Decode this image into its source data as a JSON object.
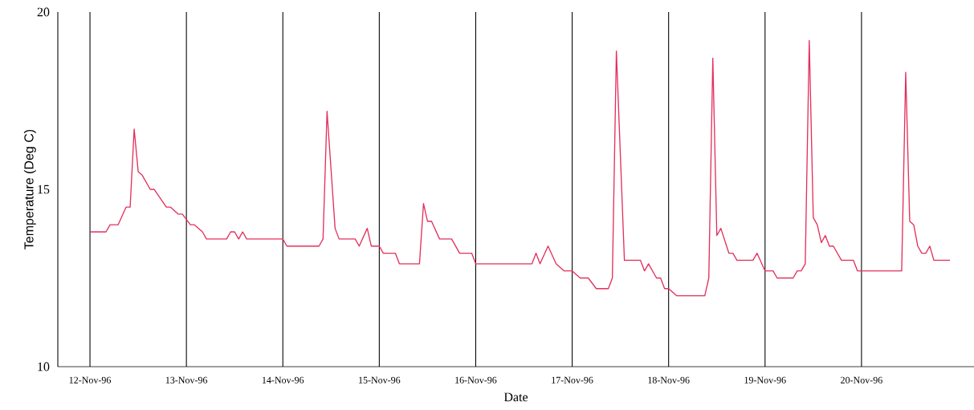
{
  "chart_data": {
    "type": "line",
    "xlabel": "Date",
    "ylabel": "Temperature (Deg C)",
    "color": "#e3305c",
    "marker": "none",
    "line_style": "solid",
    "grid": "x",
    "xlim": [
      "1996-11-11T16:00",
      "1996-11-21T04:00"
    ],
    "ylim": [
      10,
      20
    ],
    "yticks": [
      10,
      15,
      20
    ],
    "xticks": [
      {
        "value": "1996-11-12",
        "label": "12-Nov-96"
      },
      {
        "value": "1996-11-13",
        "label": "13-Nov-96"
      },
      {
        "value": "1996-11-14",
        "label": "14-Nov-96"
      },
      {
        "value": "1996-11-15",
        "label": "15-Nov-96"
      },
      {
        "value": "1996-11-16",
        "label": "16-Nov-96"
      },
      {
        "value": "1996-11-17",
        "label": "17-Nov-96"
      },
      {
        "value": "1996-11-18",
        "label": "18-Nov-96"
      },
      {
        "value": "1996-11-19",
        "label": "19-Nov-96"
      },
      {
        "value": "1996-11-20",
        "label": "20-Nov-96"
      }
    ],
    "x": [
      "1996-11-12T00:00",
      "1996-11-12T04:00",
      "1996-11-12T05:00",
      "1996-11-12T07:00",
      "1996-11-12T09:00",
      "1996-11-12T10:00",
      "1996-11-12T11:00",
      "1996-11-12T12:00",
      "1996-11-12T13:00",
      "1996-11-12T15:00",
      "1996-11-12T16:00",
      "1996-11-12T19:00",
      "1996-11-12T20:00",
      "1996-11-12T22:00",
      "1996-11-12T23:00",
      "1996-11-13T01:00",
      "1996-11-13T02:00",
      "1996-11-13T04:00",
      "1996-11-13T05:00",
      "1996-11-13T10:00",
      "1996-11-13T11:00",
      "1996-11-13T12:00",
      "1996-11-13T13:00",
      "1996-11-13T14:00",
      "1996-11-13T15:00",
      "1996-11-14T00:00",
      "1996-11-14T01:00",
      "1996-11-14T09:00",
      "1996-11-14T10:00",
      "1996-11-14T11:00",
      "1996-11-14T13:00",
      "1996-11-14T14:00",
      "1996-11-14T18:00",
      "1996-11-14T19:00",
      "1996-11-14T21:00",
      "1996-11-14T22:00",
      "1996-11-15T00:00",
      "1996-11-15T01:00",
      "1996-11-15T04:00",
      "1996-11-15T05:00",
      "1996-11-15T10:00",
      "1996-11-15T11:00",
      "1996-11-15T12:00",
      "1996-11-15T13:00",
      "1996-11-15T15:00",
      "1996-11-15T18:00",
      "1996-11-15T20:00",
      "1996-11-15T23:00",
      "1996-11-16T00:00",
      "1996-11-16T14:00",
      "1996-11-16T15:00",
      "1996-11-16T16:00",
      "1996-11-16T18:00",
      "1996-11-16T20:00",
      "1996-11-16T22:00",
      "1996-11-17T00:00",
      "1996-11-17T02:00",
      "1996-11-17T04:00",
      "1996-11-17T06:00",
      "1996-11-17T09:00",
      "1996-11-17T10:00",
      "1996-11-17T11:00",
      "1996-11-17T13:00",
      "1996-11-17T17:00",
      "1996-11-17T18:00",
      "1996-11-17T19:00",
      "1996-11-17T21:00",
      "1996-11-17T22:00",
      "1996-11-17T23:00",
      "1996-11-18T00:00",
      "1996-11-18T02:00",
      "1996-11-18T09:00",
      "1996-11-18T10:00",
      "1996-11-18T11:00",
      "1996-11-18T12:00",
      "1996-11-18T13:00",
      "1996-11-18T15:00",
      "1996-11-18T16:00",
      "1996-11-18T17:00",
      "1996-11-18T21:00",
      "1996-11-18T22:00",
      "1996-11-19T00:00",
      "1996-11-19T02:00",
      "1996-11-19T03:00",
      "1996-11-19T07:00",
      "1996-11-19T08:00",
      "1996-11-19T09:00",
      "1996-11-19T10:00",
      "1996-11-19T11:00",
      "1996-11-19T12:00",
      "1996-11-19T13:00",
      "1996-11-19T14:00",
      "1996-11-19T15:00",
      "1996-11-19T16:00",
      "1996-11-19T17:00",
      "1996-11-19T19:00",
      "1996-11-19T22:00",
      "1996-11-19T23:00",
      "1996-11-20T10:00",
      "1996-11-20T11:00",
      "1996-11-20T12:00",
      "1996-11-20T13:00",
      "1996-11-20T14:00",
      "1996-11-20T15:00",
      "1996-11-20T16:00",
      "1996-11-20T17:00",
      "1996-11-20T18:00",
      "1996-11-20T22:00"
    ],
    "values": [
      13.8,
      13.8,
      14.0,
      14.0,
      14.5,
      14.5,
      16.7,
      15.5,
      15.4,
      15.0,
      15.0,
      14.5,
      14.5,
      14.3,
      14.3,
      14.0,
      14.0,
      13.8,
      13.6,
      13.6,
      13.8,
      13.8,
      13.6,
      13.8,
      13.6,
      13.6,
      13.4,
      13.4,
      13.6,
      17.2,
      13.9,
      13.6,
      13.6,
      13.4,
      13.9,
      13.4,
      13.4,
      13.2,
      13.2,
      12.9,
      12.9,
      14.6,
      14.1,
      14.1,
      13.6,
      13.6,
      13.2,
      13.2,
      12.9,
      12.9,
      13.2,
      12.9,
      13.4,
      12.9,
      12.7,
      12.7,
      12.5,
      12.5,
      12.2,
      12.2,
      12.5,
      18.9,
      13.0,
      13.0,
      12.7,
      12.9,
      12.5,
      12.5,
      12.2,
      12.2,
      12.0,
      12.0,
      12.5,
      18.7,
      13.7,
      13.9,
      13.2,
      13.2,
      13.0,
      13.0,
      13.2,
      12.7,
      12.7,
      12.5,
      12.5,
      12.7,
      12.7,
      12.9,
      19.2,
      14.2,
      14.0,
      13.5,
      13.7,
      13.4,
      13.4,
      13.0,
      13.0,
      12.7,
      12.7,
      18.3,
      14.1,
      14.0,
      13.4,
      13.2,
      13.2,
      13.4,
      13.0,
      13.0
    ]
  }
}
